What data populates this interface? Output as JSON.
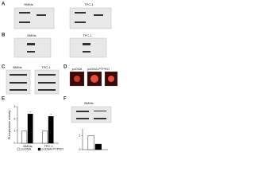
{
  "panels": [
    {
      "letter": "A",
      "labels": [
        "BMMs",
        "TPC-1"
      ]
    },
    {
      "letter": "B",
      "labels": [
        "BMMs",
        "TPC-1"
      ]
    },
    {
      "letter": "C",
      "labels": [
        "BMMs",
        "TPC-1"
      ]
    },
    {
      "letter": "D",
      "labels": [
        "pcDNA",
        "pcDNA-PTPRO"
      ]
    },
    {
      "letter": "E",
      "chart": {
        "type": "bar",
        "ylabel": "Phosphatase activity",
        "groups": [
          "BMMs",
          "TPC-1"
        ],
        "series": [
          {
            "name": "pcDNA",
            "color": "#ffffff",
            "values": [
              1,
              1
            ]
          },
          {
            "name": "pcDNA-PTPRO",
            "color": "#000000",
            "values": [
              2.4,
              2.2
            ]
          }
        ],
        "annotations": [
          "*",
          "*"
        ],
        "ylim": [
          0,
          3
        ],
        "yticks": [
          0,
          1,
          2,
          3
        ]
      }
    },
    {
      "letter": "F",
      "labels": [
        "BMMs"
      ],
      "chart": {
        "type": "bar",
        "series": [
          {
            "name": "pcDNA",
            "color": "#ffffff",
            "values": [
              1
            ]
          },
          {
            "name": "pcDNA-PTPRO",
            "color": "#000000",
            "values": [
              0.4
            ]
          }
        ],
        "ylim": [
          0,
          1.5
        ],
        "yticks": [
          0,
          1
        ]
      }
    }
  ]
}
